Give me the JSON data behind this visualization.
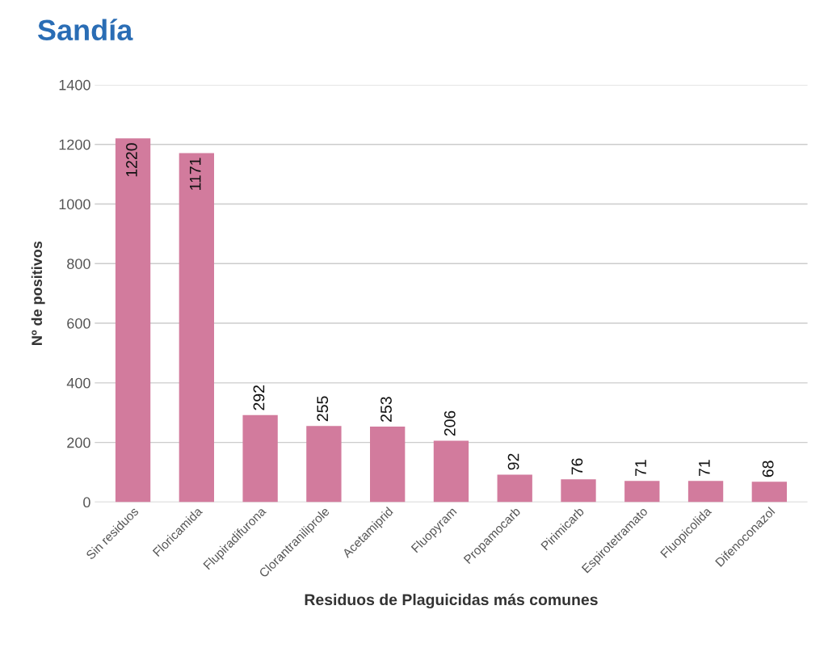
{
  "chart_data": {
    "type": "bar",
    "title": "Sandía",
    "xlabel": "Residuos de Plaguicidas más comunes",
    "ylabel": "Nº de positivos",
    "categories": [
      "Sin residuos",
      "Floricamida",
      "Flupiradifurona",
      "Clorantraniliprole",
      "Acetamiprid",
      "Fluopyram",
      "Propamocarb",
      "Pirimicarb",
      "Espirotetramato",
      "Fluopicolida",
      "Difenoconazol"
    ],
    "values": [
      1220,
      1171,
      292,
      255,
      253,
      206,
      92,
      76,
      71,
      71,
      68
    ],
    "color": "#d27b9d",
    "ylim": [
      0,
      1400
    ],
    "yticks": [
      0,
      200,
      400,
      600,
      800,
      1000,
      1200,
      1400
    ],
    "grid": "y",
    "data_labels": true,
    "legend": false
  }
}
